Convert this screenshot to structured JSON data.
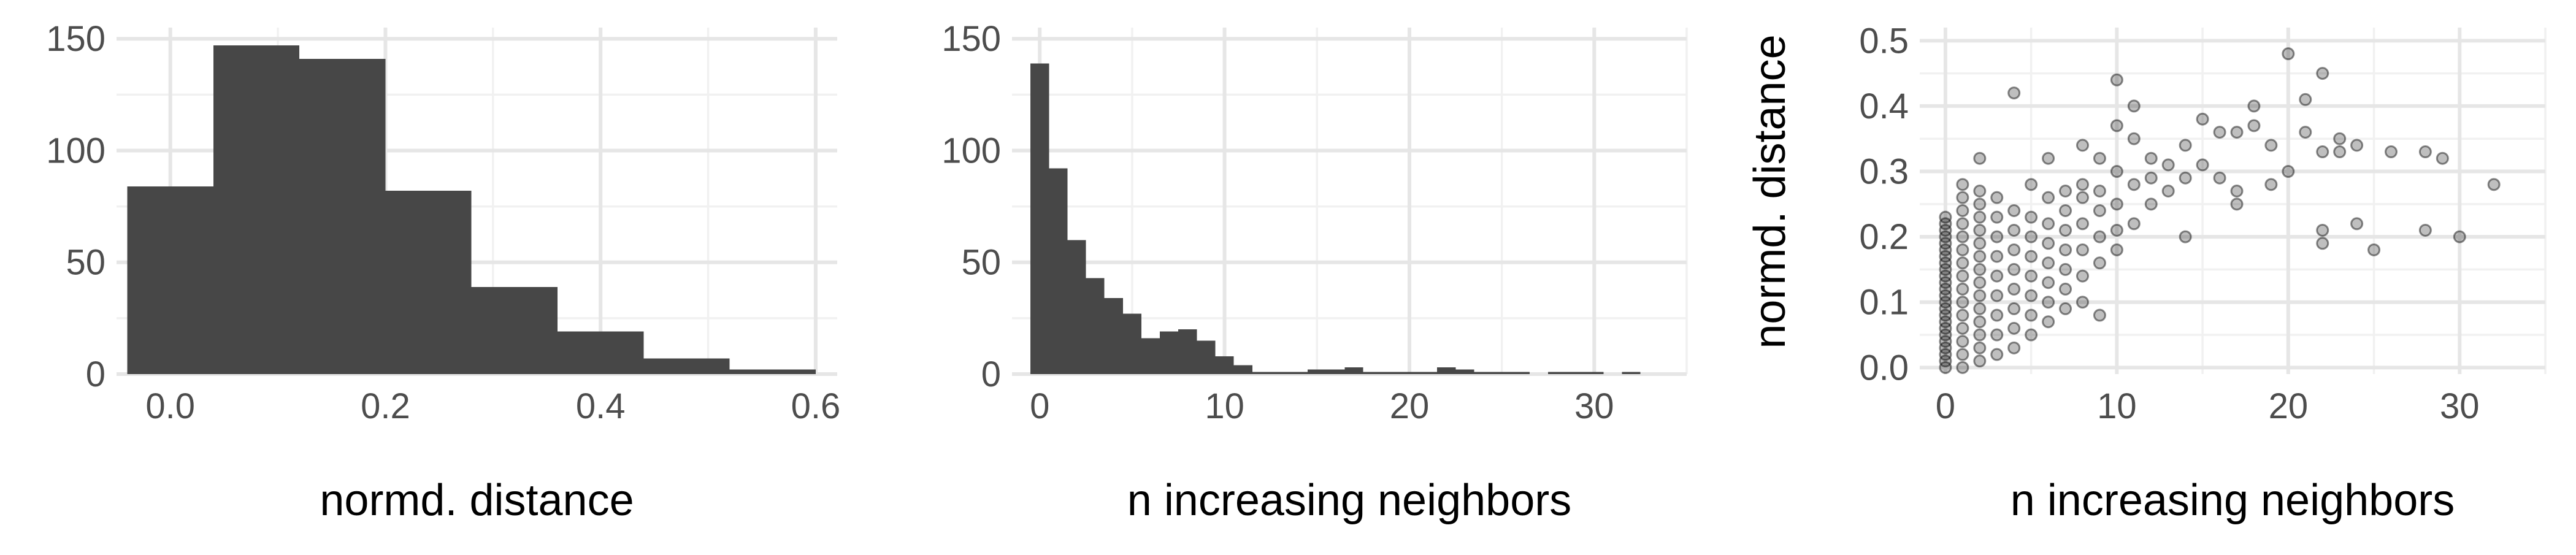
{
  "chart_data": [
    {
      "type": "bar",
      "subtype": "histogram",
      "xlabel": "normd. distance",
      "ylabel": "",
      "xlim": [
        -0.05,
        0.62
      ],
      "ylim": [
        0,
        155
      ],
      "x_ticks": [
        0.0,
        0.2,
        0.4,
        0.6
      ],
      "x_tick_labels": [
        "0.0",
        "0.2",
        "0.4",
        "0.6"
      ],
      "y_ticks": [
        0,
        50,
        100,
        150
      ],
      "y_tick_labels": [
        "0",
        "50",
        "100",
        "150"
      ],
      "grid": true,
      "bar_color": "#474747",
      "bins": [
        {
          "start": -0.04,
          "end": 0.04,
          "count": 84
        },
        {
          "start": 0.04,
          "end": 0.12,
          "count": 147
        },
        {
          "start": 0.12,
          "end": 0.2,
          "count": 141
        },
        {
          "start": 0.2,
          "end": 0.28,
          "count": 82
        },
        {
          "start": 0.28,
          "end": 0.36,
          "count": 39
        },
        {
          "start": 0.36,
          "end": 0.44,
          "count": 19
        },
        {
          "start": 0.44,
          "end": 0.52,
          "count": 7
        },
        {
          "start": 0.52,
          "end": 0.6,
          "count": 2
        }
      ]
    },
    {
      "type": "bar",
      "subtype": "histogram",
      "xlabel": "n increasing neighbors",
      "ylabel": "",
      "xlim": [
        -1.5,
        35
      ],
      "ylim": [
        0,
        155
      ],
      "x_ticks": [
        0,
        10,
        20,
        30
      ],
      "x_tick_labels": [
        "0",
        "10",
        "20",
        "30"
      ],
      "y_ticks": [
        0,
        50,
        100,
        150
      ],
      "y_tick_labels": [
        "0",
        "50",
        "100",
        "150"
      ],
      "grid": true,
      "bar_color": "#474747",
      "bins": [
        {
          "start": -0.5,
          "end": 0.5,
          "count": 139
        },
        {
          "start": 0.5,
          "end": 1.5,
          "count": 92
        },
        {
          "start": 1.5,
          "end": 2.5,
          "count": 60
        },
        {
          "start": 2.5,
          "end": 3.5,
          "count": 43
        },
        {
          "start": 3.5,
          "end": 4.5,
          "count": 34
        },
        {
          "start": 4.5,
          "end": 5.5,
          "count": 27
        },
        {
          "start": 5.5,
          "end": 6.5,
          "count": 16
        },
        {
          "start": 6.5,
          "end": 7.5,
          "count": 19
        },
        {
          "start": 7.5,
          "end": 8.5,
          "count": 20
        },
        {
          "start": 8.5,
          "end": 9.5,
          "count": 15
        },
        {
          "start": 9.5,
          "end": 10.5,
          "count": 8
        },
        {
          "start": 10.5,
          "end": 11.5,
          "count": 4
        },
        {
          "start": 11.5,
          "end": 12.5,
          "count": 1
        },
        {
          "start": 12.5,
          "end": 13.5,
          "count": 1
        },
        {
          "start": 13.5,
          "end": 14.5,
          "count": 1
        },
        {
          "start": 14.5,
          "end": 15.5,
          "count": 2
        },
        {
          "start": 15.5,
          "end": 16.5,
          "count": 2
        },
        {
          "start": 16.5,
          "end": 17.5,
          "count": 3
        },
        {
          "start": 17.5,
          "end": 18.5,
          "count": 1
        },
        {
          "start": 18.5,
          "end": 19.5,
          "count": 1
        },
        {
          "start": 19.5,
          "end": 20.5,
          "count": 1
        },
        {
          "start": 20.5,
          "end": 21.5,
          "count": 1
        },
        {
          "start": 21.5,
          "end": 22.5,
          "count": 3
        },
        {
          "start": 22.5,
          "end": 23.5,
          "count": 2
        },
        {
          "start": 23.5,
          "end": 24.5,
          "count": 1
        },
        {
          "start": 24.5,
          "end": 25.5,
          "count": 1
        },
        {
          "start": 25.5,
          "end": 26.5,
          "count": 1
        },
        {
          "start": 26.5,
          "end": 27.5,
          "count": 0
        },
        {
          "start": 27.5,
          "end": 28.5,
          "count": 1
        },
        {
          "start": 28.5,
          "end": 29.5,
          "count": 1
        },
        {
          "start": 29.5,
          "end": 30.5,
          "count": 1
        },
        {
          "start": 30.5,
          "end": 31.5,
          "count": 0
        },
        {
          "start": 31.5,
          "end": 32.5,
          "count": 1
        }
      ]
    },
    {
      "type": "scatter",
      "xlabel": "n increasing neighbors",
      "ylabel": "normd. distance",
      "xlim": [
        -1.5,
        35
      ],
      "ylim": [
        -0.01,
        0.52
      ],
      "x_ticks": [
        0,
        10,
        20,
        30
      ],
      "x_tick_labels": [
        "0",
        "10",
        "20",
        "30"
      ],
      "y_ticks": [
        0.0,
        0.1,
        0.2,
        0.3,
        0.4,
        0.5
      ],
      "y_tick_labels": [
        "0.0",
        "0.1",
        "0.2",
        "0.3",
        "0.4",
        "0.5"
      ],
      "grid": true,
      "point_color": "#000000",
      "point_alpha": 0.25,
      "points": [
        [
          0,
          0.0
        ],
        [
          0,
          0.01
        ],
        [
          0,
          0.02
        ],
        [
          0,
          0.03
        ],
        [
          0,
          0.04
        ],
        [
          0,
          0.05
        ],
        [
          0,
          0.06
        ],
        [
          0,
          0.07
        ],
        [
          0,
          0.08
        ],
        [
          0,
          0.09
        ],
        [
          0,
          0.1
        ],
        [
          0,
          0.11
        ],
        [
          0,
          0.12
        ],
        [
          0,
          0.13
        ],
        [
          0,
          0.14
        ],
        [
          0,
          0.15
        ],
        [
          0,
          0.16
        ],
        [
          0,
          0.17
        ],
        [
          0,
          0.18
        ],
        [
          0,
          0.19
        ],
        [
          0,
          0.2
        ],
        [
          0,
          0.21
        ],
        [
          0,
          0.22
        ],
        [
          0,
          0.23
        ],
        [
          1,
          0.0
        ],
        [
          1,
          0.02
        ],
        [
          1,
          0.04
        ],
        [
          1,
          0.06
        ],
        [
          1,
          0.08
        ],
        [
          1,
          0.1
        ],
        [
          1,
          0.12
        ],
        [
          1,
          0.14
        ],
        [
          1,
          0.16
        ],
        [
          1,
          0.18
        ],
        [
          1,
          0.2
        ],
        [
          1,
          0.22
        ],
        [
          1,
          0.24
        ],
        [
          1,
          0.26
        ],
        [
          1,
          0.28
        ],
        [
          2,
          0.01
        ],
        [
          2,
          0.03
        ],
        [
          2,
          0.05
        ],
        [
          2,
          0.07
        ],
        [
          2,
          0.09
        ],
        [
          2,
          0.11
        ],
        [
          2,
          0.13
        ],
        [
          2,
          0.15
        ],
        [
          2,
          0.17
        ],
        [
          2,
          0.19
        ],
        [
          2,
          0.21
        ],
        [
          2,
          0.23
        ],
        [
          2,
          0.25
        ],
        [
          2,
          0.27
        ],
        [
          2,
          0.32
        ],
        [
          3,
          0.02
        ],
        [
          3,
          0.05
        ],
        [
          3,
          0.08
        ],
        [
          3,
          0.11
        ],
        [
          3,
          0.14
        ],
        [
          3,
          0.17
        ],
        [
          3,
          0.2
        ],
        [
          3,
          0.23
        ],
        [
          3,
          0.26
        ],
        [
          4,
          0.03
        ],
        [
          4,
          0.06
        ],
        [
          4,
          0.09
        ],
        [
          4,
          0.12
        ],
        [
          4,
          0.15
        ],
        [
          4,
          0.18
        ],
        [
          4,
          0.21
        ],
        [
          4,
          0.24
        ],
        [
          4,
          0.42
        ],
        [
          5,
          0.05
        ],
        [
          5,
          0.08
        ],
        [
          5,
          0.11
        ],
        [
          5,
          0.14
        ],
        [
          5,
          0.17
        ],
        [
          5,
          0.2
        ],
        [
          5,
          0.23
        ],
        [
          5,
          0.28
        ],
        [
          6,
          0.07
        ],
        [
          6,
          0.1
        ],
        [
          6,
          0.13
        ],
        [
          6,
          0.16
        ],
        [
          6,
          0.19
        ],
        [
          6,
          0.22
        ],
        [
          6,
          0.26
        ],
        [
          6,
          0.32
        ],
        [
          7,
          0.09
        ],
        [
          7,
          0.12
        ],
        [
          7,
          0.15
        ],
        [
          7,
          0.18
        ],
        [
          7,
          0.21
        ],
        [
          7,
          0.24
        ],
        [
          7,
          0.27
        ],
        [
          8,
          0.1
        ],
        [
          8,
          0.14
        ],
        [
          8,
          0.18
        ],
        [
          8,
          0.22
        ],
        [
          8,
          0.26
        ],
        [
          8,
          0.28
        ],
        [
          8,
          0.34
        ],
        [
          9,
          0.08
        ],
        [
          9,
          0.16
        ],
        [
          9,
          0.2
        ],
        [
          9,
          0.24
        ],
        [
          9,
          0.27
        ],
        [
          9,
          0.32
        ],
        [
          10,
          0.18
        ],
        [
          10,
          0.21
        ],
        [
          10,
          0.25
        ],
        [
          10,
          0.3
        ],
        [
          10,
          0.37
        ],
        [
          10,
          0.44
        ],
        [
          11,
          0.22
        ],
        [
          11,
          0.28
        ],
        [
          11,
          0.35
        ],
        [
          11,
          0.4
        ],
        [
          12,
          0.25
        ],
        [
          12,
          0.29
        ],
        [
          12,
          0.32
        ],
        [
          13,
          0.27
        ],
        [
          13,
          0.31
        ],
        [
          14,
          0.2
        ],
        [
          14,
          0.29
        ],
        [
          14,
          0.34
        ],
        [
          15,
          0.31
        ],
        [
          15,
          0.38
        ],
        [
          16,
          0.29
        ],
        [
          16,
          0.36
        ],
        [
          17,
          0.25
        ],
        [
          17,
          0.27
        ],
        [
          17,
          0.36
        ],
        [
          18,
          0.37
        ],
        [
          18,
          0.4
        ],
        [
          19,
          0.28
        ],
        [
          19,
          0.34
        ],
        [
          20,
          0.3
        ],
        [
          20,
          0.48
        ],
        [
          21,
          0.36
        ],
        [
          21,
          0.41
        ],
        [
          22,
          0.19
        ],
        [
          22,
          0.21
        ],
        [
          22,
          0.33
        ],
        [
          22,
          0.45
        ],
        [
          23,
          0.33
        ],
        [
          23,
          0.35
        ],
        [
          24,
          0.22
        ],
        [
          24,
          0.34
        ],
        [
          25,
          0.18
        ],
        [
          26,
          0.33
        ],
        [
          28,
          0.21
        ],
        [
          28,
          0.33
        ],
        [
          29,
          0.32
        ],
        [
          30,
          0.2
        ],
        [
          32,
          0.28
        ]
      ]
    }
  ]
}
